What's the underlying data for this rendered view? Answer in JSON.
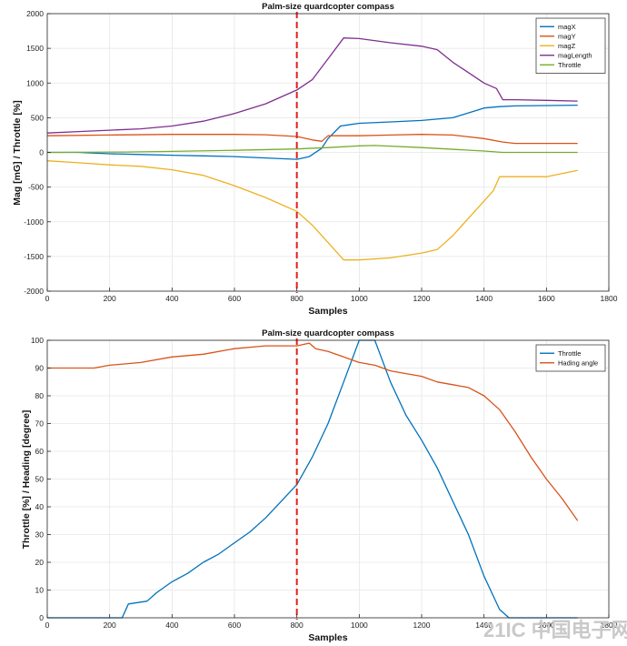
{
  "chart_data": [
    {
      "type": "line",
      "title": "Palm-size quardcopter compass",
      "xlabel": "Samples",
      "ylabel": "Mag [mG] / Throttle [%]",
      "xlim": [
        0,
        1800
      ],
      "ylim": [
        -2000,
        2000
      ],
      "xticks": [
        0,
        200,
        400,
        600,
        800,
        1000,
        1200,
        1400,
        1600,
        1800
      ],
      "yticks": [
        -2000,
        -1500,
        -1000,
        -500,
        0,
        500,
        1000,
        1500,
        2000
      ],
      "grid": true,
      "legend_position": "top-right",
      "vline": {
        "x": 800,
        "color": "#e0201c",
        "style": "dashed"
      },
      "series": [
        {
          "name": "magX",
          "color": "#0072bd",
          "x": [
            0,
            100,
            200,
            300,
            400,
            500,
            600,
            700,
            800,
            840,
            880,
            900,
            940,
            1000,
            1100,
            1200,
            1300,
            1400,
            1450,
            1500,
            1600,
            1700
          ],
          "y": [
            0,
            0,
            -20,
            -30,
            -40,
            -50,
            -60,
            -80,
            -100,
            -60,
            60,
            200,
            380,
            420,
            440,
            460,
            500,
            640,
            660,
            670,
            675,
            680
          ]
        },
        {
          "name": "magY",
          "color": "#d95319",
          "x": [
            0,
            200,
            400,
            600,
            700,
            800,
            850,
            880,
            900,
            1000,
            1100,
            1200,
            1300,
            1400,
            1460,
            1500,
            1600,
            1700
          ],
          "y": [
            240,
            250,
            260,
            260,
            255,
            230,
            180,
            160,
            240,
            240,
            250,
            260,
            250,
            200,
            150,
            130,
            130,
            130
          ]
        },
        {
          "name": "magZ",
          "color": "#edb120",
          "x": [
            0,
            100,
            200,
            300,
            400,
            500,
            600,
            700,
            800,
            850,
            900,
            950,
            1000,
            1100,
            1200,
            1250,
            1300,
            1350,
            1400,
            1430,
            1450,
            1460,
            1500,
            1600,
            1700
          ],
          "y": [
            -120,
            -150,
            -180,
            -200,
            -250,
            -330,
            -480,
            -650,
            -850,
            -1050,
            -1300,
            -1550,
            -1550,
            -1520,
            -1450,
            -1400,
            -1200,
            -950,
            -700,
            -550,
            -350,
            -350,
            -350,
            -350,
            -260
          ]
        },
        {
          "name": "magLength",
          "color": "#7e2f8e",
          "x": [
            0,
            100,
            200,
            300,
            400,
            500,
            600,
            700,
            800,
            850,
            900,
            950,
            1000,
            1100,
            1200,
            1250,
            1300,
            1350,
            1400,
            1440,
            1460,
            1500,
            1600,
            1700
          ],
          "y": [
            280,
            300,
            320,
            340,
            380,
            450,
            560,
            700,
            900,
            1050,
            1350,
            1650,
            1640,
            1580,
            1530,
            1480,
            1300,
            1150,
            1000,
            920,
            760,
            760,
            750,
            740
          ]
        },
        {
          "name": "Throttle",
          "color": "#77ac30",
          "x": [
            0,
            250,
            400,
            600,
            800,
            900,
            1000,
            1050,
            1200,
            1400,
            1460,
            1700
          ],
          "y": [
            0,
            5,
            15,
            30,
            50,
            70,
            95,
            100,
            70,
            20,
            0,
            0
          ]
        }
      ]
    },
    {
      "type": "line",
      "title": "Palm-size quardcopter compass",
      "xlabel": "Samples",
      "ylabel": "Throttle [%] / Heading [degree]",
      "xlim": [
        0,
        1800
      ],
      "ylim": [
        0,
        100
      ],
      "xticks": [
        0,
        200,
        400,
        600,
        800,
        1000,
        1200,
        1400,
        1600,
        1800
      ],
      "yticks": [
        0,
        10,
        20,
        30,
        40,
        50,
        60,
        70,
        80,
        90,
        100
      ],
      "grid": true,
      "legend_position": "top-right",
      "vline": {
        "x": 800,
        "color": "#e0201c",
        "style": "dashed"
      },
      "series": [
        {
          "name": "Throttle",
          "color": "#0072bd",
          "x": [
            0,
            240,
            260,
            320,
            350,
            400,
            450,
            500,
            550,
            600,
            650,
            700,
            750,
            800,
            850,
            900,
            950,
            1000,
            1050,
            1100,
            1150,
            1200,
            1250,
            1300,
            1350,
            1400,
            1450,
            1480,
            1500,
            1600,
            1700
          ],
          "y": [
            0,
            0,
            5,
            6,
            9,
            13,
            16,
            20,
            23,
            27,
            31,
            36,
            42,
            48,
            58,
            70,
            85,
            100,
            100,
            85,
            73,
            64,
            54,
            42,
            30,
            15,
            3,
            0,
            0,
            0,
            0
          ]
        },
        {
          "name": "Hading angle",
          "color": "#d95319",
          "x": [
            0,
            150,
            200,
            300,
            400,
            500,
            600,
            700,
            800,
            840,
            860,
            900,
            950,
            1000,
            1050,
            1100,
            1150,
            1200,
            1250,
            1300,
            1350,
            1400,
            1450,
            1500,
            1550,
            1600,
            1650,
            1700
          ],
          "y": [
            90,
            90,
            91,
            92,
            94,
            95,
            97,
            98,
            98,
            99,
            97,
            96,
            94,
            92,
            91,
            89,
            88,
            87,
            85,
            84,
            83,
            80,
            75,
            67,
            58,
            50,
            43,
            35
          ]
        }
      ]
    }
  ],
  "watermark": "21IC 中国电子网"
}
